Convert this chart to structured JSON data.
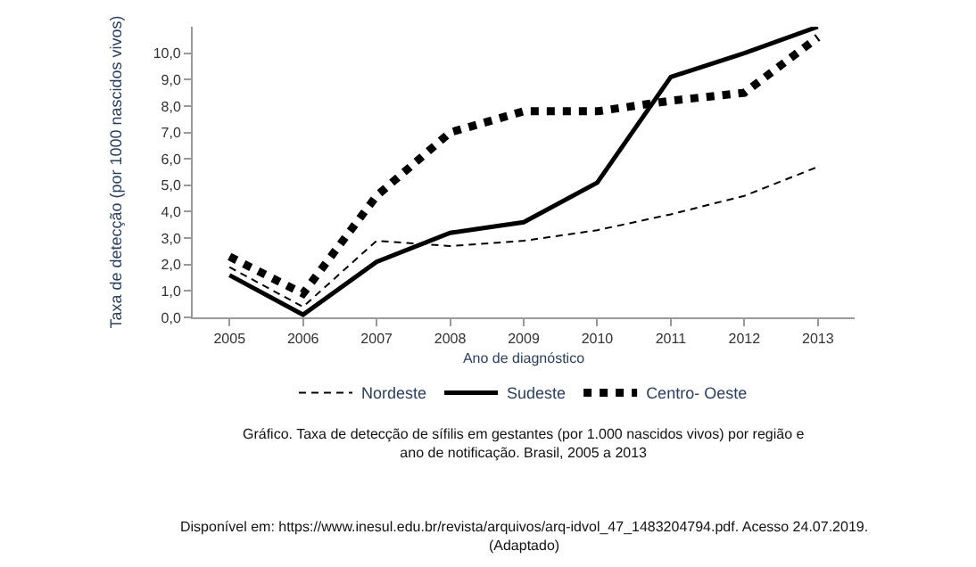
{
  "chart_data": {
    "type": "line",
    "xlabel": "Ano de diagnóstico",
    "ylabel": "Taxa de detecção (por 1000 nascidos vivos)",
    "categories": [
      "2005",
      "2006",
      "2007",
      "2008",
      "2009",
      "2010",
      "2011",
      "2012",
      "2013"
    ],
    "series": [
      {
        "name": "Nordeste",
        "color": "#000000",
        "line_style": "dashed",
        "values": [
          1.9,
          0.4,
          2.9,
          2.7,
          2.9,
          3.3,
          3.9,
          4.6,
          5.7
        ]
      },
      {
        "name": "Sudeste",
        "color": "#000000",
        "line_style": "solid",
        "values": [
          1.6,
          0.1,
          2.1,
          3.2,
          3.6,
          5.1,
          9.1,
          10.0,
          11.0
        ]
      },
      {
        "name": "Centro- Oeste",
        "color": "#000000",
        "line_style": "dotted",
        "values": [
          2.3,
          0.9,
          4.6,
          7.0,
          7.8,
          7.8,
          8.2,
          8.5,
          10.6
        ]
      }
    ],
    "ylim": [
      0,
      11
    ],
    "yticks": [
      {
        "value": 0,
        "label": "0,0"
      },
      {
        "value": 1,
        "label": "1,0"
      },
      {
        "value": 2,
        "label": "2,0"
      },
      {
        "value": 3,
        "label": "3,0"
      },
      {
        "value": 4,
        "label": "4,0"
      },
      {
        "value": 5,
        "label": "5,0"
      },
      {
        "value": 6,
        "label": "6,0"
      },
      {
        "value": 7,
        "label": "7,0"
      },
      {
        "value": 8,
        "label": "8,0"
      },
      {
        "value": 9,
        "label": "9,0"
      },
      {
        "value": 10,
        "label": "10,0"
      }
    ],
    "legend": "bottom",
    "marker": "none",
    "annotations": [
      "Gráfico. Taxa de detecção de sífilis em gestantes (por 1.000 nascidos vivos) por região e\nano de notificação. Brasil, 2005 a 2013",
      "Disponível em: https://www.inesul.edu.br/revista/arquivos/arq-idvol_47_1483204794.pdf. Acesso 24.07.2019.\n(Adaptado)"
    ]
  }
}
